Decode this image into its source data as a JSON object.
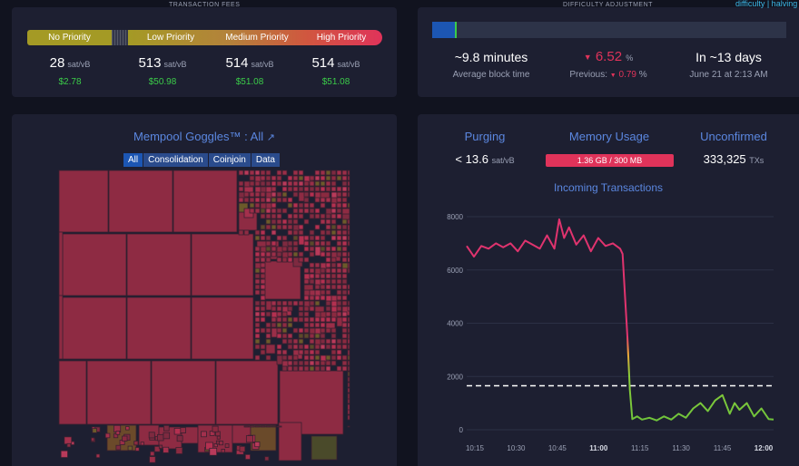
{
  "fees": {
    "section_title": "TRANSACTION FEES",
    "bar_labels": [
      "No Priority",
      "Low Priority",
      "Medium Priority",
      "High Priority"
    ],
    "items": [
      {
        "value": "28",
        "unit": "sat/vB",
        "usd": "$2.78"
      },
      {
        "value": "513",
        "unit": "sat/vB",
        "usd": "$50.98"
      },
      {
        "value": "514",
        "unit": "sat/vB",
        "usd": "$51.08"
      },
      {
        "value": "514",
        "unit": "sat/vB",
        "usd": "$51.08"
      }
    ]
  },
  "difficulty": {
    "section_title": "DIFFICULTY ADJUSTMENT",
    "tabs": "difficulty | halving",
    "progress_fraction": 0.07,
    "block_time": "~9.8 minutes",
    "block_time_label": "Average block time",
    "change_arrow": "▼",
    "change": "6.52",
    "change_unit": "%",
    "previous_label": "Previous:",
    "previous_arrow": "▼",
    "previous_value": "0.79",
    "previous_unit": "%",
    "eta": "In ~13 days",
    "eta_date": "June 21 at 2:13 AM"
  },
  "goggles": {
    "title": "Mempool Goggles™ : All",
    "tabs": [
      "All",
      "Consolidation",
      "Coinjoin",
      "Data"
    ]
  },
  "mempool": {
    "purging_label": "Purging",
    "purging_value": "< 13.6",
    "purging_unit": "sat/vB",
    "memory_label": "Memory Usage",
    "memory_value": "1.36 GB / 300 MB",
    "unconfirmed_label": "Unconfirmed",
    "unconfirmed_value": "333,325",
    "unconfirmed_unit": "TXs",
    "chart_title": "Incoming Transactions"
  },
  "colors": {
    "no_priority": "#a49a25",
    "high_priority": "#e0335a",
    "accent_blue": "#5b87e0",
    "green": "#3bcc49"
  },
  "chart_data": {
    "type": "line",
    "title": "Incoming Transactions",
    "x_ticks": [
      "10:15",
      "10:30",
      "10:45",
      "11:00",
      "11:15",
      "11:30",
      "11:45",
      "12:00"
    ],
    "y_ticks": [
      "0",
      "2000",
      "4000",
      "6000",
      "8000"
    ],
    "ylim": [
      0,
      8000
    ],
    "x_minutes": [
      0,
      3,
      6,
      9,
      12,
      15,
      18,
      21,
      24,
      27,
      30,
      33,
      36,
      38,
      40,
      42,
      45,
      48,
      51,
      54,
      57,
      60,
      63,
      64,
      65,
      66,
      67,
      68,
      70,
      72,
      75,
      78,
      81,
      84,
      87,
      90,
      93,
      96,
      99,
      102,
      105,
      108,
      110,
      112,
      115,
      118,
      121,
      124,
      126
    ],
    "values": [
      6900,
      6500,
      6900,
      6800,
      7000,
      6850,
      7000,
      6700,
      7100,
      6950,
      6800,
      7300,
      6800,
      7900,
      7200,
      7600,
      6950,
      7300,
      6700,
      7200,
      6900,
      7000,
      6800,
      6600,
      5000,
      3500,
      1500,
      400,
      500,
      380,
      450,
      350,
      500,
      380,
      600,
      450,
      800,
      1000,
      700,
      1100,
      1300,
      600,
      1000,
      750,
      1000,
      500,
      800,
      400,
      380
    ],
    "threshold": 1650,
    "grid": true
  }
}
